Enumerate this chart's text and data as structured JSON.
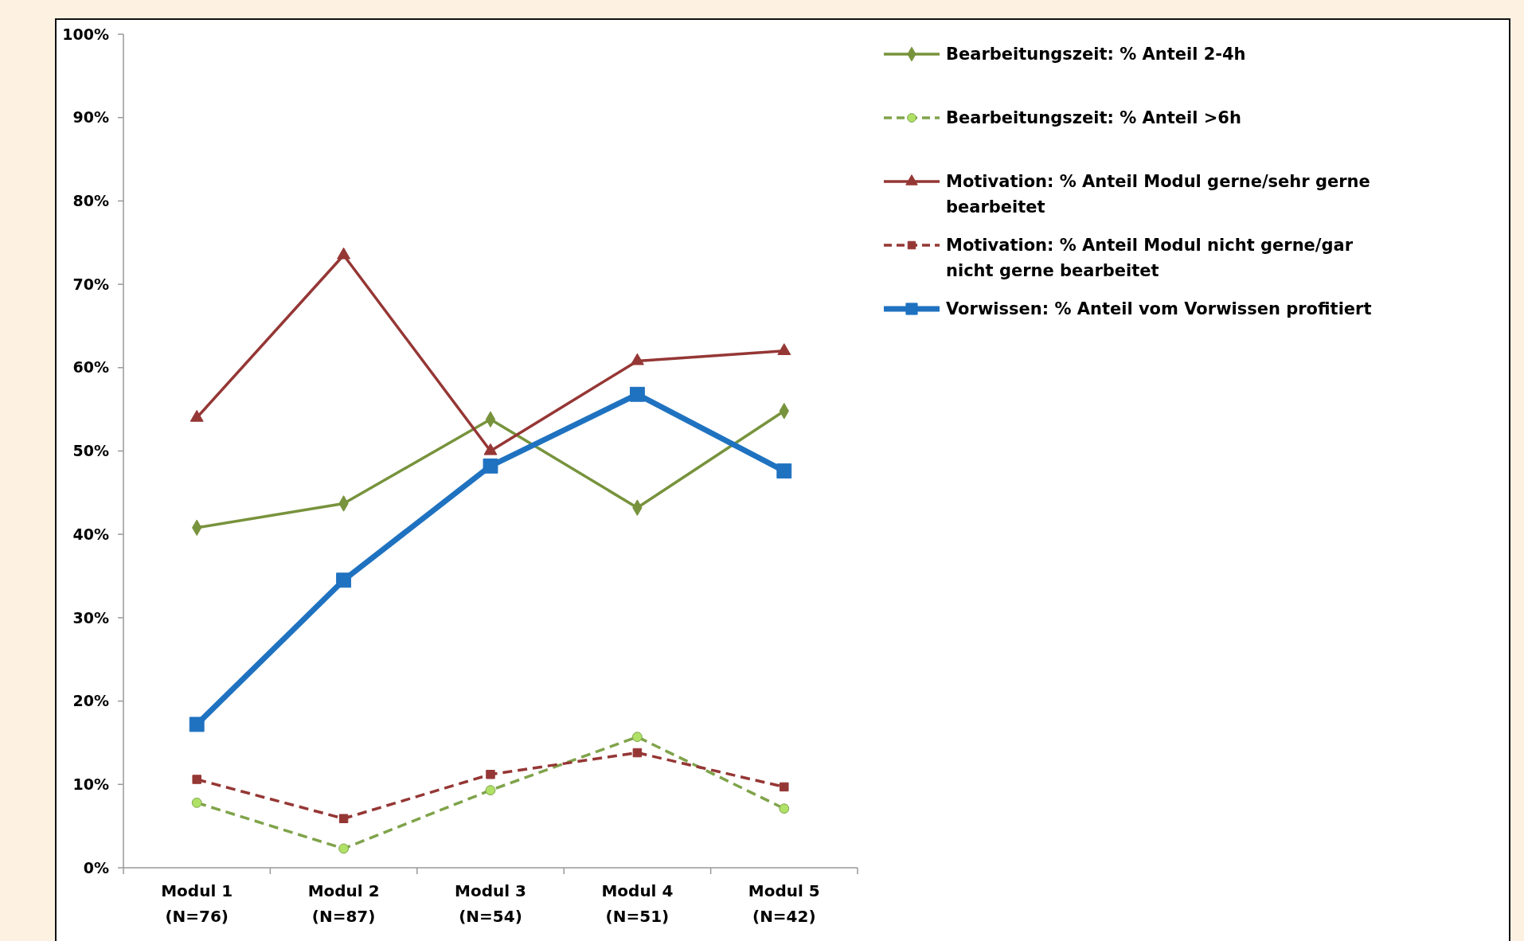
{
  "chart_data": {
    "type": "line",
    "categories": [
      "Modul 1\n(N=76)",
      "Modul 2\n(N=87)",
      "Modul 3\n(N=54)",
      "Modul 4\n(N=51)",
      "Modul 5\n(N=42)"
    ],
    "series": [
      {
        "name": "Bearbeitungszeit: % Anteil 2-4h",
        "color": "#77933c",
        "values": [
          40.8,
          43.7,
          53.8,
          43.2,
          54.8
        ],
        "marker": "diamond",
        "line_style": "solid"
      },
      {
        "name": "Bearbeitungszeit: % Anteil >6h",
        "color": "#7fa34a",
        "values": [
          7.8,
          2.3,
          9.3,
          15.7,
          7.1
        ],
        "marker": "circle",
        "line_style": "dashed"
      },
      {
        "name": "Motivation: % Anteil Modul gerne/sehr gerne bearbeitet",
        "color": "#953735",
        "values": [
          54,
          73.5,
          50,
          60.8,
          62
        ],
        "marker": "triangle",
        "line_style": "solid"
      },
      {
        "name": "Motivation: % Anteil Modul nicht gerne/gar nicht gerne bearbeitet",
        "color": "#953735",
        "values": [
          10.6,
          5.9,
          11.2,
          13.8,
          9.7
        ],
        "marker": "square",
        "line_style": "dashed"
      },
      {
        "name": "Vorwissen: % Anteil vom Vorwissen profitiert",
        "color": "#1f72c0",
        "values": [
          17.2,
          34.5,
          48.2,
          56.8,
          47.6
        ],
        "marker": "square",
        "line_style": "solid"
      }
    ],
    "ylim": [
      0,
      100
    ],
    "yticks": [
      {
        "value": 0,
        "label": "0%"
      },
      {
        "value": 10,
        "label": "10%"
      },
      {
        "value": 20,
        "label": "20%"
      },
      {
        "value": 30,
        "label": "30%"
      },
      {
        "value": 40,
        "label": "40%"
      },
      {
        "value": 50,
        "label": "50%"
      },
      {
        "value": 60,
        "label": "60%"
      },
      {
        "value": 70,
        "label": "70%"
      },
      {
        "value": 80,
        "label": "80%"
      },
      {
        "value": 90,
        "label": "90%"
      },
      {
        "value": 100,
        "label": "100%"
      }
    ],
    "grid": false,
    "legend": "right"
  }
}
